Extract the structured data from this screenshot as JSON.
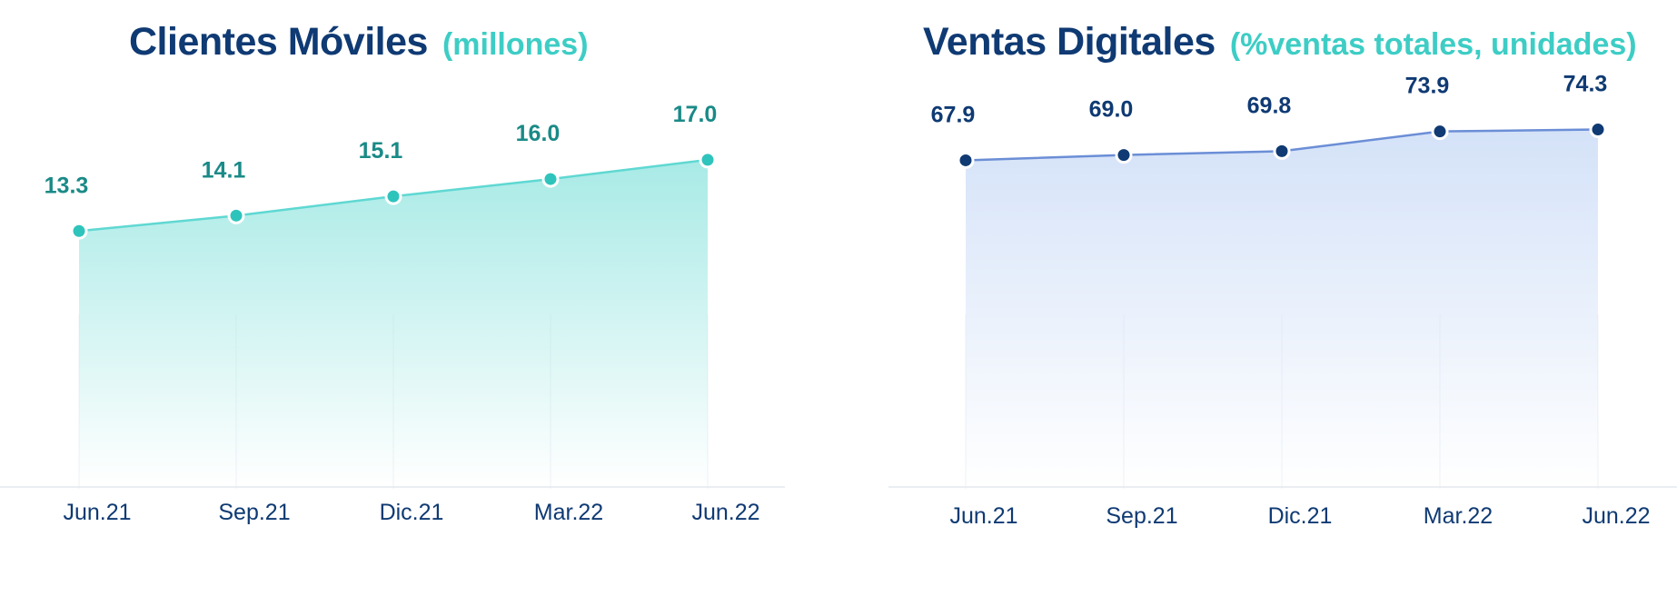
{
  "chart_data": [
    {
      "type": "area",
      "title": "Clientes Móviles",
      "subtitle": "(millones)",
      "categories": [
        "Jun.21",
        "Sep.21",
        "Dic.21",
        "Mar.22",
        "Jun.22"
      ],
      "values": [
        13.3,
        14.1,
        15.1,
        16.0,
        17.0
      ],
      "value_labels": [
        "13.3",
        "14.1",
        "15.1",
        "16.0",
        "17.0"
      ],
      "ylim": [
        0,
        22
      ],
      "grid": false,
      "colors": {
        "line": "#5fd8d2",
        "fill": "#a8eae6",
        "marker": "#2ec4bc",
        "label": "#1a8a87"
      }
    },
    {
      "type": "area",
      "title": "Ventas Digitales",
      "subtitle": "(%ventas totales, unidades)",
      "categories": [
        "Jun.21",
        "Sep.21",
        "Dic.21",
        "Mar.22",
        "Jun.22"
      ],
      "values": [
        67.9,
        69.0,
        69.8,
        73.9,
        74.3
      ],
      "value_labels": [
        "67.9",
        "69.0",
        "69.8",
        "73.9",
        "74.3"
      ],
      "ylim": [
        0,
        88
      ],
      "grid": false,
      "colors": {
        "line": "#6b8ed6",
        "fill": "#d4e2f8",
        "marker": "#0f3a73",
        "label": "#0f3a73"
      }
    }
  ]
}
